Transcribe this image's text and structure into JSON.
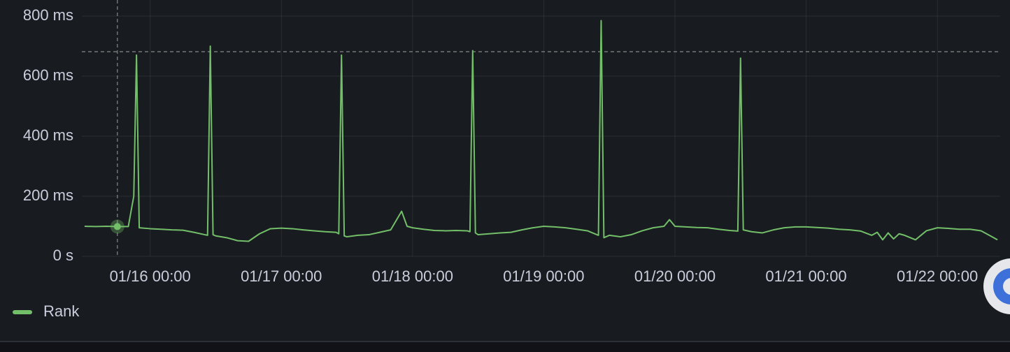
{
  "chart_data": {
    "type": "line",
    "ylim": [
      0,
      800
    ],
    "yticks": [
      {
        "value": 0,
        "label": "0 s"
      },
      {
        "value": 200,
        "label": "200 ms"
      },
      {
        "value": 400,
        "label": "400 ms"
      },
      {
        "value": 600,
        "label": "600 ms"
      },
      {
        "value": 800,
        "label": "800 ms"
      }
    ],
    "xlim": [
      "01/15 11:30",
      "01/22 11:30"
    ],
    "xticks": [
      "01/16 00:00",
      "01/17 00:00",
      "01/18 00:00",
      "01/19 00:00",
      "01/20 00:00",
      "01/21 00:00",
      "01/22 00:00"
    ],
    "grid": true,
    "legend": "bottom-left",
    "x": [
      "01/15 12:00",
      "01/15 14:00",
      "01/15 16:00",
      "01/15 18:00",
      "01/15 20:00",
      "01/15 21:00",
      "01/15 21:30",
      "01/15 22:00",
      "01/16 00:00",
      "01/16 02:00",
      "01/16 04:00",
      "01/16 06:00",
      "01/16 08:00",
      "01/16 10:00",
      "01/16 10:30",
      "01/16 11:00",
      "01/16 11:30",
      "01/16 12:00",
      "01/16 14:00",
      "01/16 16:00",
      "01/16 18:00",
      "01/16 20:00",
      "01/16 22:00",
      "01/17 00:00",
      "01/17 02:00",
      "01/17 04:00",
      "01/17 06:00",
      "01/17 08:00",
      "01/17 10:00",
      "01/17 10:30",
      "01/17 11:00",
      "01/17 11:30",
      "01/17 12:00",
      "01/17 14:00",
      "01/17 16:00",
      "01/17 18:00",
      "01/17 20:00",
      "01/17 22:00",
      "01/17 23:00",
      "01/18 00:00",
      "01/18 02:00",
      "01/18 04:00",
      "01/18 06:00",
      "01/18 08:00",
      "01/18 10:00",
      "01/18 10:30",
      "01/18 11:00",
      "01/18 11:30",
      "01/18 12:00",
      "01/18 14:00",
      "01/18 16:00",
      "01/18 18:00",
      "01/18 20:00",
      "01/18 22:00",
      "01/19 00:00",
      "01/19 02:00",
      "01/19 04:00",
      "01/19 06:00",
      "01/19 08:00",
      "01/19 10:00",
      "01/19 10:30",
      "01/19 11:00",
      "01/19 12:00",
      "01/19 14:00",
      "01/19 16:00",
      "01/19 18:00",
      "01/19 20:00",
      "01/19 22:00",
      "01/19 23:00",
      "01/20 00:00",
      "01/20 02:00",
      "01/20 04:00",
      "01/20 06:00",
      "01/20 08:00",
      "01/20 10:00",
      "01/20 11:30",
      "01/20 12:00",
      "01/20 12:30",
      "01/20 14:00",
      "01/20 16:00",
      "01/20 18:00",
      "01/20 20:00",
      "01/20 22:00",
      "01/21 00:00",
      "01/21 02:00",
      "01/21 04:00",
      "01/21 06:00",
      "01/21 08:00",
      "01/21 10:00",
      "01/21 12:00",
      "01/21 13:00",
      "01/21 14:00",
      "01/21 15:00",
      "01/21 16:00",
      "01/21 17:00",
      "01/21 18:00",
      "01/21 20:00",
      "01/21 22:00",
      "01/22 00:00",
      "01/22 02:00",
      "01/22 04:00",
      "01/22 06:00",
      "01/22 08:00",
      "01/22 10:00",
      "01/22 11:00"
    ],
    "series": [
      {
        "name": "Rank",
        "color": "#73bf69",
        "values": [
          100,
          99,
          100,
          99,
          99,
          200,
          670,
          95,
          92,
          90,
          88,
          87,
          80,
          72,
          70,
          700,
          72,
          68,
          62,
          52,
          50,
          75,
          92,
          94,
          92,
          88,
          85,
          82,
          80,
          75,
          670,
          68,
          65,
          70,
          72,
          80,
          88,
          150,
          100,
          95,
          90,
          86,
          85,
          86,
          85,
          82,
          685,
          78,
          72,
          75,
          78,
          80,
          88,
          95,
          100,
          98,
          95,
          90,
          85,
          70,
          785,
          62,
          70,
          65,
          72,
          85,
          95,
          100,
          122,
          100,
          98,
          96,
          95,
          90,
          86,
          84,
          660,
          88,
          82,
          78,
          88,
          95,
          98,
          98,
          96,
          94,
          90,
          88,
          84,
          70,
          80,
          55,
          78,
          58,
          75,
          70,
          55,
          85,
          95,
          93,
          90,
          90,
          85,
          65,
          55
        ]
      }
    ]
  }
}
